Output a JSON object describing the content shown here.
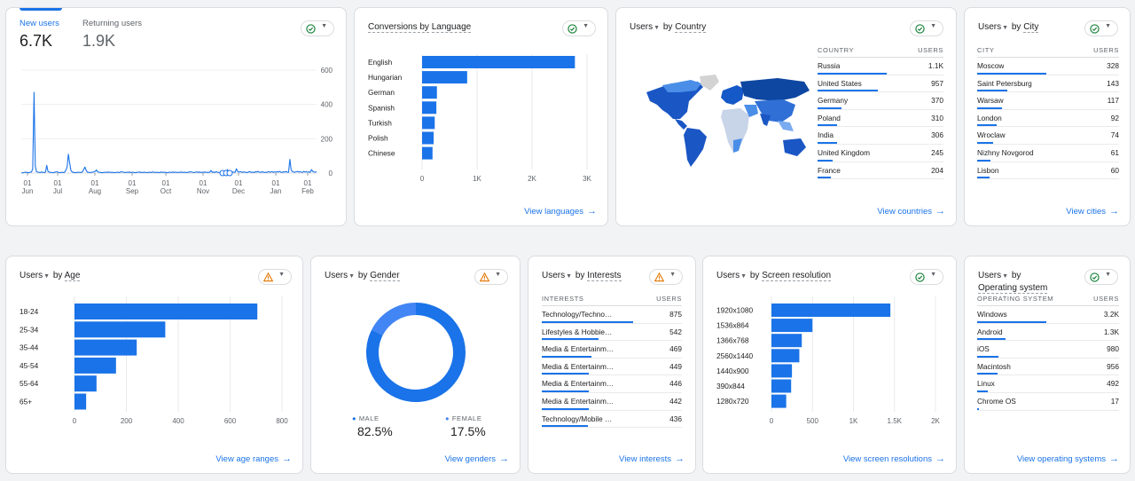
{
  "overview": {
    "tabs": [
      {
        "label": "New users",
        "value": "6.7K"
      },
      {
        "label": "Returning users",
        "value": "1.9K"
      }
    ],
    "y_ticks": [
      "600",
      "400",
      "200",
      "0"
    ],
    "x_ticks": [
      {
        "day": "01",
        "month": "Jun"
      },
      {
        "day": "01",
        "month": "Jul"
      },
      {
        "day": "01",
        "month": "Aug"
      },
      {
        "day": "01",
        "month": "Sep"
      },
      {
        "day": "01",
        "month": "Oct"
      },
      {
        "day": "01",
        "month": "Nov"
      },
      {
        "day": "01",
        "month": "Dec"
      },
      {
        "day": "01",
        "month": "Jan"
      },
      {
        "day": "01",
        "month": "Feb"
      }
    ],
    "series_color": "#1a73e8"
  },
  "language": {
    "title_a": "Conversions by",
    "title_b": "Language",
    "link": "View languages",
    "x_ticks": [
      "0",
      "1K",
      "2K",
      "3K"
    ]
  },
  "country": {
    "title_a": "Users",
    "title_b": "by",
    "title_c": "Country",
    "col1": "COUNTRY",
    "col2": "USERS",
    "rows": [
      {
        "label": "Russia",
        "value": "1.1K",
        "pct": 1.0
      },
      {
        "label": "United States",
        "value": "957",
        "pct": 0.87
      },
      {
        "label": "Germany",
        "value": "370",
        "pct": 0.34
      },
      {
        "label": "Poland",
        "value": "310",
        "pct": 0.28
      },
      {
        "label": "India",
        "value": "306",
        "pct": 0.28
      },
      {
        "label": "United Kingdom",
        "value": "245",
        "pct": 0.22
      },
      {
        "label": "France",
        "value": "204",
        "pct": 0.19
      }
    ],
    "link": "View countries"
  },
  "city": {
    "title_a": "Users",
    "title_b": "by",
    "title_c": "City",
    "col1": "CITY",
    "col2": "USERS",
    "rows": [
      {
        "label": "Moscow",
        "value": "328",
        "pct": 1.0
      },
      {
        "label": "Saint Petersburg",
        "value": "143",
        "pct": 0.44
      },
      {
        "label": "Warsaw",
        "value": "117",
        "pct": 0.36
      },
      {
        "label": "London",
        "value": "92",
        "pct": 0.28
      },
      {
        "label": "Wroclaw",
        "value": "74",
        "pct": 0.23
      },
      {
        "label": "Nizhny Novgorod",
        "value": "61",
        "pct": 0.19
      },
      {
        "label": "Lisbon",
        "value": "60",
        "pct": 0.18
      }
    ],
    "link": "View cities"
  },
  "age": {
    "title_a": "Users",
    "title_b": "by",
    "title_c": "Age",
    "x_ticks": [
      "0",
      "200",
      "400",
      "600",
      "800"
    ],
    "link": "View age ranges"
  },
  "gender": {
    "title_a": "Users",
    "title_b": "by",
    "title_c": "Gender",
    "male_label": "MALE",
    "male_value": "82.5%",
    "female_label": "FEMALE",
    "female_value": "17.5%",
    "link": "View genders"
  },
  "interests": {
    "title_a": "Users",
    "title_b": "by",
    "title_c": "Interests",
    "col1": "INTERESTS",
    "col2": "USERS",
    "rows": [
      {
        "label": "Technology/Technop…",
        "value": "875",
        "pct": 1.0
      },
      {
        "label": "Lifestyles & Hobbies…",
        "value": "542",
        "pct": 0.62
      },
      {
        "label": "Media & Entertainme…",
        "value": "469",
        "pct": 0.54
      },
      {
        "label": "Media & Entertainme…",
        "value": "449",
        "pct": 0.51
      },
      {
        "label": "Media & Entertainme…",
        "value": "446",
        "pct": 0.51
      },
      {
        "label": "Media & Entertainme…",
        "value": "442",
        "pct": 0.51
      },
      {
        "label": "Technology/Mobile E…",
        "value": "436",
        "pct": 0.5
      }
    ],
    "link": "View interests"
  },
  "resolution": {
    "title_a": "Users",
    "title_b": "by",
    "title_c": "Screen resolution",
    "x_ticks": [
      "0",
      "500",
      "1K",
      "1.5K",
      "2K"
    ],
    "link": "View screen resolutions"
  },
  "os": {
    "title_a": "Users",
    "title_b": "by",
    "title_c": "Operating system",
    "col1": "OPERATING SYSTEM",
    "col2": "USERS",
    "rows": [
      {
        "label": "Windows",
        "value": "3.2K",
        "pct": 1.0
      },
      {
        "label": "Android",
        "value": "1.3K",
        "pct": 0.41
      },
      {
        "label": "iOS",
        "value": "980",
        "pct": 0.31
      },
      {
        "label": "Macintosh",
        "value": "956",
        "pct": 0.3
      },
      {
        "label": "Linux",
        "value": "492",
        "pct": 0.15
      },
      {
        "label": "Chrome OS",
        "value": "17",
        "pct": 0.01
      }
    ],
    "link": "View operating systems"
  },
  "chart_data": [
    {
      "type": "line",
      "title": "New users",
      "series": [
        {
          "name": "New users",
          "values": [
            0,
            2,
            3,
            5,
            4,
            3,
            2,
            5,
            6,
            25,
            470,
            40,
            8,
            5,
            4,
            3,
            6,
            4,
            3,
            5,
            45,
            10,
            5,
            4,
            3,
            2,
            4,
            6,
            8,
            4,
            3,
            2,
            5,
            3,
            4,
            15,
            35,
            110,
            60,
            15,
            6,
            4,
            3,
            2,
            4,
            5,
            3,
            4,
            6,
            20,
            35,
            15,
            5,
            4,
            3,
            4,
            5,
            6,
            10,
            18,
            8,
            5,
            4,
            3,
            2,
            4,
            5,
            3,
            6,
            4,
            5,
            3,
            4,
            2,
            3,
            5,
            4,
            3,
            6,
            8,
            5,
            4,
            3,
            5,
            4,
            6,
            3,
            4,
            5,
            2,
            3,
            4,
            5,
            6,
            4,
            3,
            4,
            5,
            3,
            2,
            5,
            4,
            3,
            6,
            5,
            4,
            3,
            5,
            2,
            4,
            6,
            3,
            5,
            4,
            3,
            2,
            4,
            5,
            3,
            6,
            4,
            5,
            4,
            3,
            5,
            4,
            6,
            3,
            5,
            4,
            3,
            4,
            6,
            8,
            5,
            4,
            3,
            5,
            7,
            4,
            6,
            3,
            5,
            4,
            6,
            5,
            4,
            3,
            5,
            15,
            4,
            6,
            3,
            8,
            5,
            4,
            2,
            6,
            3,
            5,
            4,
            7,
            20,
            5,
            4,
            3,
            6,
            5,
            4,
            25,
            10,
            5,
            8,
            6,
            4,
            7,
            5,
            3,
            4,
            9,
            6,
            4,
            5,
            3,
            8,
            6,
            10,
            5,
            4,
            7,
            6,
            3,
            5,
            4,
            8,
            6,
            5,
            9,
            4,
            7,
            5,
            8,
            6,
            10,
            5,
            4,
            7,
            6,
            9,
            5,
            4,
            80,
            20,
            8,
            6,
            5,
            7,
            10,
            6,
            8,
            5,
            4,
            10,
            6,
            8,
            5,
            7,
            4,
            20,
            10,
            6,
            5,
            8
          ]
        }
      ],
      "ylim": [
        0,
        600
      ],
      "x_tick_labels": [
        "01 Jun",
        "01 Jul",
        "01 Aug",
        "01 Sep",
        "01 Oct",
        "01 Nov",
        "01 Dec",
        "01 Jan",
        "01 Feb"
      ]
    },
    {
      "type": "bar",
      "orientation": "horizontal",
      "title": "Conversions by Language",
      "categories": [
        "English",
        "Hungarian",
        "German",
        "Spanish",
        "Turkish",
        "Polish",
        "Chinese"
      ],
      "values": [
        2780,
        820,
        270,
        260,
        230,
        210,
        190
      ],
      "xlim": [
        0,
        3000
      ]
    },
    {
      "type": "bar",
      "orientation": "horizontal",
      "title": "Users by Age",
      "categories": [
        "18-24",
        "25-34",
        "35-44",
        "45-54",
        "55-64",
        "65+"
      ],
      "values": [
        705,
        350,
        240,
        160,
        85,
        45
      ],
      "xlim": [
        0,
        800
      ]
    },
    {
      "type": "pie",
      "donut": true,
      "title": "Users by Gender",
      "categories": [
        "MALE",
        "FEMALE"
      ],
      "values": [
        82.5,
        17.5
      ],
      "colors": [
        "#1a73e8",
        "#4285f4"
      ]
    },
    {
      "type": "bar",
      "orientation": "horizontal",
      "title": "Users by Screen resolution",
      "categories": [
        "1920x1080",
        "1536x864",
        "1366x768",
        "2560x1440",
        "1440x900",
        "390x844",
        "1280x720"
      ],
      "values": [
        1450,
        500,
        370,
        340,
        250,
        240,
        180
      ],
      "xlim": [
        0,
        2000
      ]
    }
  ]
}
